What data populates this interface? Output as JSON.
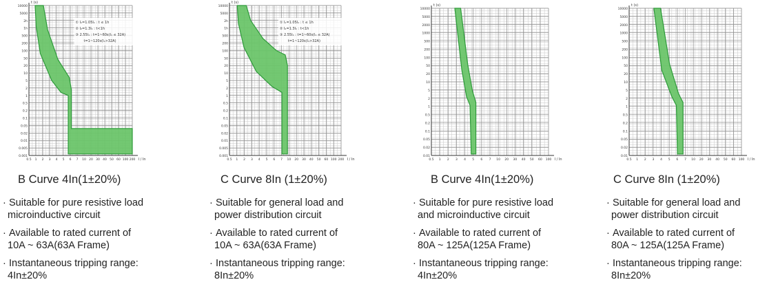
{
  "colors": {
    "curve_fill": "#6cc56a",
    "curve_stroke": "#2e9a3a",
    "grid_major": "#8a8a8a",
    "grid_minor": "#cfcfcf",
    "axis": "#333333",
    "text": "#222222"
  },
  "panels": [
    {
      "kind": "small",
      "title": "B Curve   4In(1±20%)",
      "lines": [
        {
          "bullet": "·",
          "first": "Suitable for pure resistive load",
          "second": "microinductive circuit"
        },
        {
          "bullet": "·",
          "first": "Available to rated current of",
          "second": "10A ~ 63A(63A Frame)"
        },
        {
          "bullet": "·",
          "first": "Instantaneous tripping range:",
          "second": "4In±20%"
        }
      ],
      "axis_y_label": "t (s)",
      "axis_x_label": "I / In",
      "y_ticks": [
        "10000",
        "5000",
        "2h",
        "1h",
        "500",
        "200",
        "100",
        "50",
        "20",
        "10",
        "5",
        "2",
        "1",
        "0.5",
        "0.2",
        "0.1",
        "0.05",
        "0.02",
        "0.01",
        "0.005",
        "0.001"
      ],
      "x_ticks": [
        "0.5",
        "1",
        "2",
        "3",
        "4",
        "5",
        "6",
        "7",
        "10",
        "20",
        "30",
        "40",
        "50",
        "60",
        "100",
        "200"
      ],
      "legend": [
        "① I₁=1.05I₁ : t ≤ 1h",
        "② I₂=1.3I₁ : t<1h",
        "③ 2.55I₁ : t=1~60s(I₁ ≤ 32A)",
        "t=1~120s(I₁>32A)"
      ]
    },
    {
      "kind": "small",
      "title": "C Curve   8In (1±20%)",
      "lines": [
        {
          "bullet": "·",
          "first": "Suitable for general load and",
          "second": "power distribution circuit"
        },
        {
          "bullet": "·",
          "first": "Available to rated current  of",
          "second": "10A ~ 63A(63A Frame)"
        },
        {
          "bullet": "·",
          "first": "Instantaneous tripping range:",
          "second": "8In±20%"
        }
      ],
      "axis_y_label": "t (s)",
      "axis_x_label": "I / In",
      "y_ticks": [
        "10000",
        "5000",
        "2h",
        "1h",
        "500",
        "200",
        "100",
        "50",
        "20",
        "10",
        "5",
        "2",
        "1",
        "0.5",
        "0.2",
        "0.1",
        "0.05",
        "0.02",
        "0.01",
        "0.005",
        "0.001"
      ],
      "x_ticks": [
        "0.5",
        "1",
        "2",
        "3",
        "4",
        "5",
        "6",
        "7",
        "10",
        "20",
        "30",
        "40",
        "50",
        "60",
        "100",
        "200"
      ],
      "legend": [
        "① I₁=1.05I₁ : t ≤ 1h",
        "② I₂=1.3I₁ : t<1h",
        "③ 2.55I₁ : t=1~60s(I₁ ≤ 32A)",
        "t=1~120s(I₁>32A)"
      ]
    },
    {
      "kind": "large",
      "title": "B Curve  4In(1±20%)",
      "lines": [
        {
          "bullet": "·",
          "first": "Suitable for pure resistive load",
          "second": "and microinductive circuit"
        },
        {
          "bullet": "·",
          "first": "Available to rated current of",
          "second": "80A ~ 125A(125A Frame)"
        },
        {
          "bullet": "·",
          "first": "Instantaneous tripping range:",
          "second": "4In±20%"
        }
      ],
      "axis_y_label": "t (s)",
      "axis_x_label": "I / In",
      "y_ticks": [
        "10000",
        "5000",
        "2000",
        "1000",
        "500",
        "200",
        "100",
        "50",
        "20",
        "10",
        "5",
        "2",
        "1",
        "0.5",
        "0.2",
        "0.1",
        "0.05",
        "0.02",
        "0.01"
      ],
      "x_ticks": [
        "0.5",
        "1",
        "2",
        "3",
        "4",
        "5",
        "6",
        "7",
        "10",
        "20",
        "30",
        "40",
        "50",
        "60",
        "100"
      ],
      "legend": []
    },
    {
      "kind": "large",
      "title": "C Curve   8In (1±20%)",
      "lines": [
        {
          "bullet": "·",
          "first": "Suitable for general load and",
          "second": "power distribution circuit"
        },
        {
          "bullet": "·",
          "first": "Available to rated current  of",
          "second": "80A ~ 125A(125A Frame)"
        },
        {
          "bullet": "·",
          "first": "Instantaneous tripping range:",
          "second": "8In±20%"
        }
      ],
      "axis_y_label": "t (s)",
      "axis_x_label": "I / In",
      "y_ticks": [
        "10000",
        "5000",
        "2000",
        "1000",
        "500",
        "200",
        "100",
        "50",
        "20",
        "10",
        "5",
        "2",
        "1",
        "0.5",
        "0.2",
        "0.1",
        "0.05",
        "0.02",
        "0.01"
      ],
      "x_ticks": [
        "0.5",
        "1",
        "2",
        "3",
        "4",
        "5",
        "6",
        "7",
        "10",
        "20",
        "30",
        "40",
        "50",
        "60",
        "100"
      ],
      "legend": []
    }
  ]
}
